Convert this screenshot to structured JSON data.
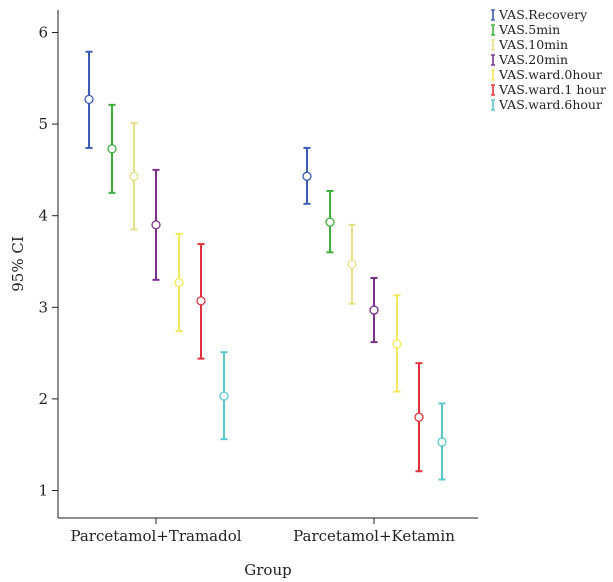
{
  "chart_data": {
    "type": "errorbar",
    "xlabel": "Group",
    "ylabel": "95% CI",
    "ylim": [
      0.85,
      6.25
    ],
    "yticks": [
      1,
      2,
      3,
      4,
      5,
      6
    ],
    "categories": [
      "Parcetamol+Tramadol",
      "Parcetamol+Ketamin"
    ],
    "legend_position": "top-right, outside plot",
    "series": [
      {
        "name": "VAS.Recovery",
        "color": "#3a5bb8",
        "mean": [
          5.27,
          4.43
        ],
        "lower": [
          4.74,
          4.13
        ],
        "upper": [
          5.79,
          4.74
        ]
      },
      {
        "name": "VAS.5min",
        "color": "#3fae3f",
        "mean": [
          4.73,
          3.93
        ],
        "lower": [
          4.25,
          3.6
        ],
        "upper": [
          5.21,
          4.27
        ]
      },
      {
        "name": "VAS.10min",
        "color": "#e6e08a",
        "mean": [
          4.43,
          3.47
        ],
        "lower": [
          3.85,
          3.04
        ],
        "upper": [
          5.01,
          3.9
        ]
      },
      {
        "name": "VAS.20min",
        "color": "#7a2f8c",
        "mean": [
          3.9,
          2.97
        ],
        "lower": [
          3.3,
          2.62
        ],
        "upper": [
          4.5,
          3.32
        ]
      },
      {
        "name": "VAS.ward.0hour",
        "color": "#f2ea5a",
        "mean": [
          3.27,
          2.6
        ],
        "lower": [
          2.74,
          2.08
        ],
        "upper": [
          3.8,
          3.13
        ]
      },
      {
        "name": "VAS.ward.1 hour",
        "color": "#e0323c",
        "mean": [
          3.07,
          1.8
        ],
        "lower": [
          2.44,
          1.21
        ],
        "upper": [
          3.69,
          2.39
        ]
      },
      {
        "name": "VAS.ward.6hour",
        "color": "#5cc7cf",
        "mean": [
          2.03,
          1.53
        ],
        "lower": [
          1.56,
          1.12
        ],
        "upper": [
          2.51,
          1.95
        ]
      }
    ]
  }
}
